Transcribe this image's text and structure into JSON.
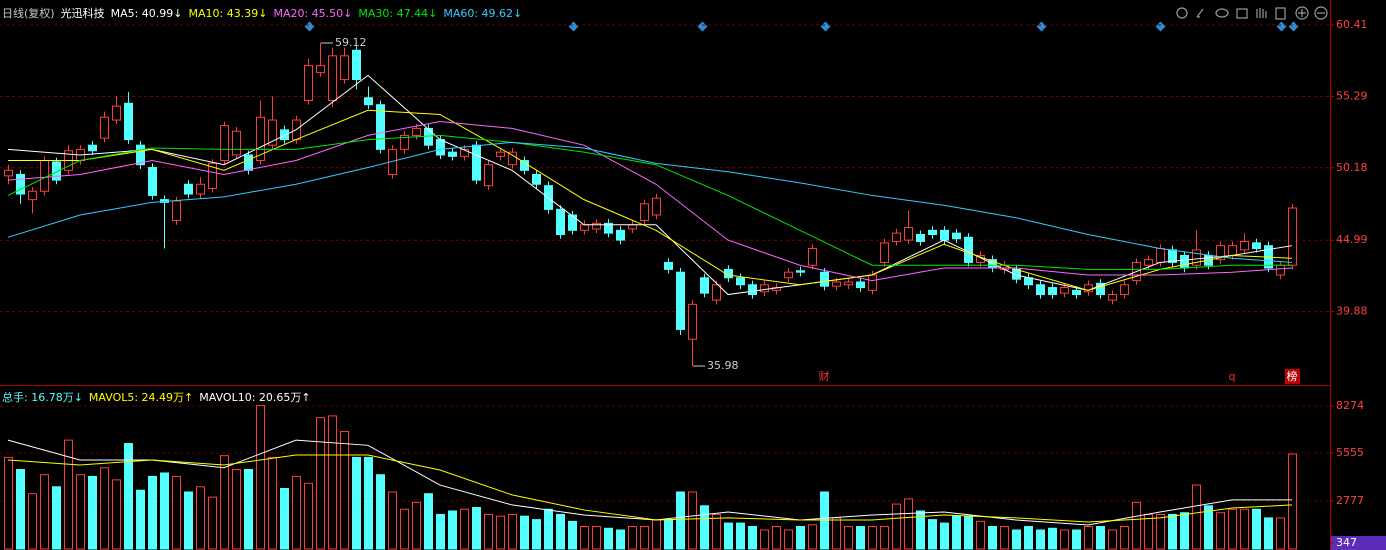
{
  "chart_data": {
    "type": "candlestick",
    "header": [
      {
        "text": "日线(复权)",
        "color": "#c8c8c8"
      },
      {
        "text": "光迅科技",
        "color": "#ffffff"
      },
      {
        "text": "MA5: 40.99↓",
        "color": "#ffffff"
      },
      {
        "text": "MA10: 43.39↓",
        "color": "#ffff00"
      },
      {
        "text": "MA20: 45.50↓",
        "color": "#ff66ff"
      },
      {
        "text": "MA30: 47.44↓",
        "color": "#00e600"
      },
      {
        "text": "MA60: 49.62↓",
        "color": "#33ccff"
      }
    ],
    "up_color": "#ff3c3c",
    "down_color": "#54ffff",
    "ylim": [
      34.62,
      62.2
    ],
    "yticks": [
      60.41,
      55.29,
      50.18,
      44.99,
      39.88
    ],
    "candles": [
      [
        49.6,
        50.4,
        49.0,
        50.0
      ],
      [
        49.7,
        50.0,
        47.6,
        48.3
      ],
      [
        47.9,
        48.8,
        46.9,
        48.5
      ],
      [
        48.5,
        51.0,
        48.2,
        50.7
      ],
      [
        50.6,
        50.9,
        49.0,
        49.3
      ],
      [
        50.0,
        51.8,
        49.7,
        51.4
      ],
      [
        50.7,
        51.8,
        50.4,
        51.5
      ],
      [
        51.8,
        52.1,
        51.1,
        51.4
      ],
      [
        52.3,
        54.2,
        52.0,
        53.8
      ],
      [
        53.6,
        55.3,
        53.3,
        54.6
      ],
      [
        54.8,
        55.6,
        51.9,
        52.2
      ],
      [
        51.8,
        52.1,
        50.1,
        50.4
      ],
      [
        50.2,
        50.5,
        47.9,
        48.2
      ],
      [
        47.9,
        48.2,
        44.4,
        47.7
      ],
      [
        46.4,
        48.1,
        46.1,
        47.8
      ],
      [
        49.0,
        49.3,
        48.0,
        48.3
      ],
      [
        48.3,
        49.5,
        48.0,
        49.0
      ],
      [
        48.7,
        50.8,
        48.4,
        50.5
      ],
      [
        50.7,
        53.5,
        50.4,
        53.2
      ],
      [
        51.1,
        53.1,
        50.8,
        52.8
      ],
      [
        51.1,
        51.4,
        49.7,
        50.0
      ],
      [
        50.7,
        55.0,
        50.4,
        53.8
      ],
      [
        51.8,
        55.3,
        51.5,
        53.6
      ],
      [
        52.9,
        53.2,
        51.9,
        52.2
      ],
      [
        52.2,
        53.9,
        51.9,
        53.6
      ],
      [
        55.0,
        58.0,
        54.7,
        57.5
      ],
      [
        57.0,
        59.12,
        56.7,
        57.5
      ],
      [
        55.0,
        58.8,
        54.5,
        58.2
      ],
      [
        56.5,
        58.8,
        56.2,
        58.2
      ],
      [
        58.6,
        58.9,
        55.8,
        56.5
      ],
      [
        55.2,
        56.0,
        54.4,
        54.7
      ],
      [
        54.7,
        55.0,
        51.2,
        51.5
      ],
      [
        49.7,
        51.8,
        49.4,
        51.5
      ],
      [
        51.5,
        52.8,
        51.2,
        52.5
      ],
      [
        52.5,
        53.3,
        52.2,
        53.0
      ],
      [
        53.0,
        53.3,
        51.5,
        51.8
      ],
      [
        52.2,
        52.5,
        50.8,
        51.1
      ],
      [
        51.3,
        51.6,
        50.7,
        51.0
      ],
      [
        51.0,
        51.8,
        50.7,
        51.5
      ],
      [
        51.8,
        52.1,
        49.0,
        49.3
      ],
      [
        48.9,
        50.7,
        48.6,
        50.4
      ],
      [
        51.0,
        51.6,
        50.7,
        51.3
      ],
      [
        50.4,
        51.6,
        50.1,
        51.3
      ],
      [
        50.7,
        51.0,
        49.7,
        50.0
      ],
      [
        49.7,
        50.0,
        48.7,
        49.0
      ],
      [
        48.9,
        49.2,
        46.9,
        47.2
      ],
      [
        47.2,
        47.5,
        45.1,
        45.4
      ],
      [
        46.8,
        47.1,
        45.4,
        45.7
      ],
      [
        45.7,
        46.4,
        45.4,
        46.1
      ],
      [
        45.8,
        46.5,
        45.5,
        46.2
      ],
      [
        46.2,
        46.5,
        45.2,
        45.5
      ],
      [
        45.7,
        46.0,
        44.7,
        45.0
      ],
      [
        45.8,
        46.4,
        45.5,
        46.1
      ],
      [
        46.4,
        47.9,
        46.1,
        47.6
      ],
      [
        46.8,
        48.3,
        46.5,
        48.0
      ],
      [
        43.4,
        43.7,
        42.6,
        42.9
      ],
      [
        42.7,
        43.0,
        38.2,
        38.6
      ],
      [
        37.9,
        40.7,
        35.98,
        40.4
      ],
      [
        42.3,
        42.6,
        40.9,
        41.2
      ],
      [
        40.7,
        42.1,
        40.4,
        41.8
      ],
      [
        42.9,
        43.2,
        42.0,
        42.3
      ],
      [
        42.3,
        42.6,
        41.5,
        41.8
      ],
      [
        41.8,
        42.1,
        40.8,
        41.1
      ],
      [
        41.3,
        42.1,
        41.0,
        41.8
      ],
      [
        41.4,
        41.9,
        41.1,
        41.6
      ],
      [
        42.3,
        43.0,
        42.0,
        42.7
      ],
      [
        42.8,
        43.1,
        42.4,
        42.7
      ],
      [
        43.2,
        44.7,
        42.9,
        44.4
      ],
      [
        42.7,
        43.0,
        41.4,
        41.7
      ],
      [
        41.7,
        42.3,
        41.4,
        42.0
      ],
      [
        41.8,
        42.3,
        41.5,
        42.0
      ],
      [
        42.0,
        42.3,
        41.3,
        41.6
      ],
      [
        41.4,
        42.8,
        41.1,
        42.5
      ],
      [
        43.4,
        45.1,
        43.1,
        44.8
      ],
      [
        44.9,
        45.8,
        44.6,
        45.5
      ],
      [
        45.0,
        47.1,
        44.7,
        45.9
      ],
      [
        45.4,
        45.7,
        44.6,
        44.9
      ],
      [
        45.7,
        46.0,
        45.1,
        45.4
      ],
      [
        45.7,
        46.0,
        44.7,
        45.0
      ],
      [
        45.5,
        45.8,
        44.8,
        45.1
      ],
      [
        45.2,
        45.5,
        43.1,
        43.4
      ],
      [
        43.4,
        44.2,
        43.1,
        43.9
      ],
      [
        43.6,
        43.9,
        42.7,
        43.0
      ],
      [
        42.9,
        43.5,
        42.6,
        43.2
      ],
      [
        42.9,
        43.2,
        41.9,
        42.2
      ],
      [
        42.3,
        42.6,
        41.5,
        41.8
      ],
      [
        41.8,
        42.1,
        40.8,
        41.1
      ],
      [
        41.6,
        41.9,
        40.8,
        41.1
      ],
      [
        41.2,
        41.9,
        40.9,
        41.6
      ],
      [
        41.4,
        41.7,
        40.8,
        41.1
      ],
      [
        41.3,
        42.1,
        41.0,
        41.8
      ],
      [
        41.9,
        42.2,
        40.8,
        41.1
      ],
      [
        40.7,
        41.4,
        40.4,
        41.1
      ],
      [
        41.1,
        42.1,
        40.8,
        41.8
      ],
      [
        42.1,
        43.7,
        41.8,
        43.4
      ],
      [
        43.2,
        43.9,
        42.9,
        43.6
      ],
      [
        43.4,
        44.7,
        43.1,
        44.4
      ],
      [
        44.3,
        44.6,
        43.1,
        43.4
      ],
      [
        43.9,
        44.2,
        42.7,
        43.0
      ],
      [
        43.2,
        45.7,
        42.9,
        44.3
      ],
      [
        43.9,
        44.2,
        42.9,
        43.2
      ],
      [
        43.6,
        44.9,
        43.3,
        44.6
      ],
      [
        43.9,
        44.9,
        43.6,
        44.6
      ],
      [
        44.3,
        45.5,
        44.0,
        44.9
      ],
      [
        44.8,
        45.1,
        44.1,
        44.4
      ],
      [
        44.6,
        44.9,
        42.7,
        43.0
      ],
      [
        42.5,
        43.5,
        42.2,
        43.2
      ],
      [
        43.2,
        47.6,
        42.9,
        47.3
      ]
    ],
    "ma_lines": [
      {
        "color": "#ffffff",
        "x": [
          0,
          6,
          12,
          18,
          24,
          30,
          36,
          42,
          48,
          54,
          60,
          66,
          72,
          78,
          84,
          90,
          96,
          102,
          107
        ],
        "values": [
          51.5,
          51.1,
          51.5,
          50.4,
          52.9,
          56.8,
          52.2,
          50.0,
          46.1,
          46.1,
          41.1,
          41.8,
          42.5,
          45.0,
          42.5,
          41.4,
          43.4,
          43.9,
          44.6
        ]
      },
      {
        "color": "#ffff00",
        "x": [
          0,
          6,
          12,
          18,
          24,
          30,
          36,
          42,
          48,
          54,
          60,
          66,
          72,
          78,
          84,
          90,
          96,
          102,
          107
        ],
        "values": [
          50.7,
          50.7,
          51.5,
          50.0,
          52.2,
          54.3,
          54.0,
          51.1,
          47.9,
          45.7,
          42.5,
          41.8,
          42.5,
          44.7,
          42.9,
          41.4,
          42.9,
          43.9,
          43.7
        ]
      },
      {
        "color": "#ff66ff",
        "x": [
          0,
          6,
          12,
          18,
          24,
          30,
          36,
          42,
          48,
          54,
          60,
          66,
          72,
          78,
          84,
          90,
          96,
          102,
          107
        ],
        "values": [
          49.3,
          49.7,
          50.7,
          49.7,
          50.7,
          52.5,
          53.5,
          53.0,
          51.8,
          49.0,
          45.0,
          43.2,
          42.1,
          43.0,
          43.0,
          42.5,
          42.5,
          42.7,
          43.0
        ]
      },
      {
        "color": "#00e600",
        "x": [
          0,
          6,
          12,
          18,
          24,
          30,
          36,
          42,
          48,
          54,
          60,
          66,
          72,
          78,
          84,
          90,
          96,
          102,
          107
        ],
        "values": [
          48.2,
          50.7,
          51.6,
          51.5,
          51.5,
          52.2,
          52.5,
          52.0,
          51.3,
          50.4,
          48.2,
          45.7,
          43.2,
          43.2,
          43.2,
          42.9,
          42.9,
          43.2,
          43.2
        ]
      },
      {
        "color": "#33ccff",
        "x": [
          0,
          6,
          12,
          18,
          24,
          30,
          36,
          42,
          48,
          54,
          60,
          66,
          72,
          78,
          84,
          90,
          96,
          102,
          107
        ],
        "values": [
          45.2,
          46.8,
          47.7,
          48.1,
          49.0,
          50.2,
          51.5,
          52.0,
          51.6,
          50.5,
          49.9,
          49.1,
          48.2,
          47.5,
          46.6,
          45.4,
          44.4,
          43.7,
          43.4
        ]
      }
    ],
    "annotations": [
      {
        "x": 26,
        "value": 59.12
      },
      {
        "x": 57,
        "value": 35.98
      }
    ],
    "markers": [
      {
        "x": 68,
        "label": "财"
      },
      {
        "x": 102,
        "label": "q"
      },
      {
        "x": 107,
        "label": "榜"
      }
    ],
    "volume": {
      "header": [
        {
          "text": "总手: 16.78万↓",
          "color": "#54ffff"
        },
        {
          "text": "MAVOL5: 24.49万↑",
          "color": "#ffff00"
        },
        {
          "text": "MAVOL10: 20.65万↑",
          "color": "#ffffff"
        }
      ],
      "ylim": [
        0,
        8911
      ],
      "yticks": [
        8274,
        5555,
        2777,
        347
      ],
      "values": [
        5300,
        4600,
        3200,
        4300,
        3600,
        6300,
        4300,
        4200,
        4700,
        4000,
        6100,
        3400,
        4200,
        4400,
        4200,
        3300,
        3600,
        3000,
        5400,
        4600,
        4600,
        8300,
        5300,
        3500,
        4200,
        3800,
        7600,
        7700,
        6800,
        5300,
        5300,
        4300,
        3300,
        2300,
        2700,
        3200,
        2000,
        2200,
        2300,
        2400,
        2000,
        1900,
        2000,
        1900,
        1700,
        2300,
        2000,
        1600,
        1300,
        1300,
        1200,
        1100,
        1300,
        1300,
        1700,
        1700,
        3300,
        3300,
        2500,
        2000,
        1500,
        1500,
        1300,
        1100,
        1300,
        1100,
        1300,
        1400,
        3300,
        1800,
        1300,
        1300,
        1300,
        1300,
        2600,
        2900,
        2200,
        1700,
        1500,
        1900,
        1900,
        1600,
        1300,
        1300,
        1100,
        1300,
        1100,
        1200,
        1100,
        1100,
        1300,
        1300,
        1100,
        1300,
        2700,
        2000,
        2000,
        2000,
        2100,
        3700,
        2500,
        2100,
        2300,
        2300,
        2300,
        1800,
        1800,
        5500
      ],
      "ma_lines": [
        {
          "color": "#ffffff",
          "x": [
            0,
            6,
            12,
            18,
            24,
            30,
            36,
            42,
            48,
            54,
            60,
            66,
            72,
            78,
            84,
            90,
            96,
            102,
            107
          ],
          "values": [
            6300,
            5150,
            5150,
            4700,
            6300,
            6000,
            3700,
            2550,
            1970,
            1680,
            2140,
            1680,
            1970,
            2140,
            1680,
            1390,
            2140,
            2840,
            2840
          ]
        },
        {
          "color": "#ffff00",
          "x": [
            0,
            6,
            12,
            18,
            24,
            30,
            36,
            42,
            48,
            54,
            60,
            66,
            72,
            78,
            84,
            90,
            96,
            102,
            107
          ],
          "values": [
            5150,
            4860,
            5150,
            4860,
            5440,
            5440,
            4570,
            3130,
            2260,
            1680,
            1800,
            1680,
            1680,
            1970,
            1800,
            1560,
            1800,
            2370,
            2550
          ]
        }
      ]
    }
  }
}
